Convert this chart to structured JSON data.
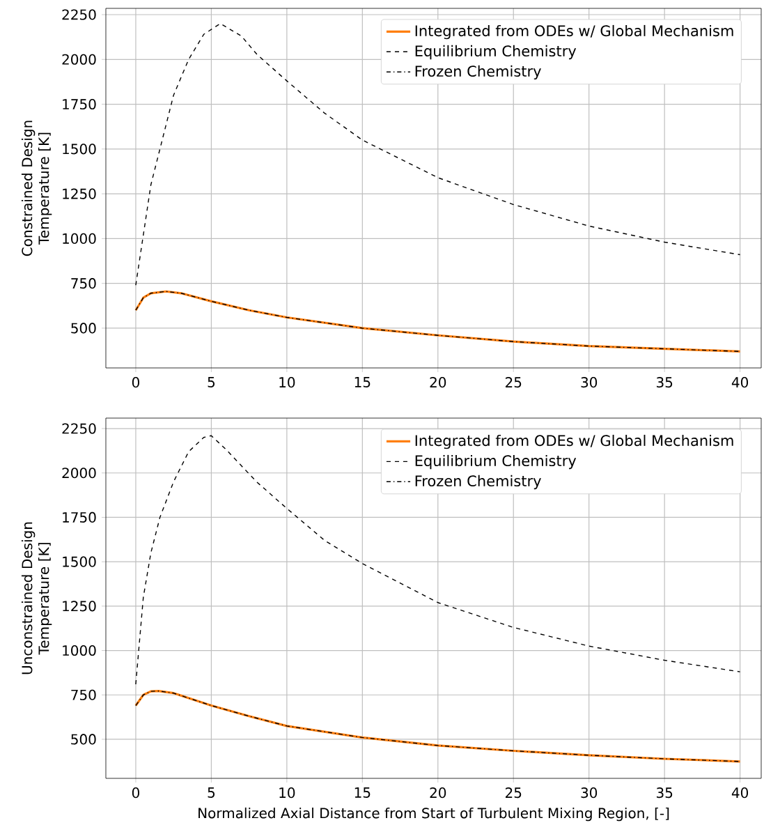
{
  "chart_data": [
    {
      "type": "line",
      "ylabel": "Constrained Design Temperature [K]",
      "xlim": [
        -1.98,
        41.4
      ],
      "ylim": [
        278,
        2285
      ],
      "xticks": [
        0,
        5,
        10,
        15,
        20,
        25,
        30,
        35,
        40
      ],
      "yticks": [
        500,
        750,
        1000,
        1250,
        1500,
        1750,
        2000,
        2250
      ],
      "grid": true,
      "legend": "top right",
      "marker": "none",
      "series": [
        {
          "name": "Integrated from ODEs w/ Global Mechanism",
          "color": "#ff7f0e",
          "line_style": "solid",
          "x": [
            0,
            0.5,
            1,
            2,
            3,
            5,
            7.5,
            10,
            15,
            20,
            25,
            30,
            35,
            40
          ],
          "values": [
            600,
            670,
            695,
            705,
            695,
            650,
            600,
            560,
            500,
            460,
            425,
            400,
            385,
            370
          ]
        },
        {
          "name": "Equilibrium Chemistry",
          "color": "#000000",
          "line_style": "dashed",
          "x": [
            0,
            1,
            1.6,
            2.5,
            3.5,
            4.5,
            5.6,
            7,
            8,
            10,
            12.5,
            15,
            20,
            25,
            30,
            35,
            40
          ],
          "values": [
            740,
            1300,
            1500,
            1800,
            2000,
            2140,
            2200,
            2130,
            2030,
            1880,
            1700,
            1550,
            1340,
            1190,
            1070,
            980,
            910
          ]
        },
        {
          "name": "Frozen Chemistry",
          "color": "#000000",
          "line_style": "dashdot",
          "x": [
            0,
            0.5,
            1,
            2,
            3,
            5,
            7.5,
            10,
            15,
            20,
            25,
            30,
            35,
            40
          ],
          "values": [
            600,
            670,
            695,
            705,
            695,
            650,
            600,
            560,
            500,
            460,
            425,
            400,
            385,
            370
          ]
        }
      ]
    },
    {
      "type": "line",
      "xlabel": "Normalized Axial Distance from Start of Turbulent Mixing Region, [-]",
      "ylabel": "Unconstrained Design Temperature [K]",
      "xlim": [
        -1.98,
        41.4
      ],
      "ylim": [
        280,
        2309
      ],
      "xticks": [
        0,
        5,
        10,
        15,
        20,
        25,
        30,
        35,
        40
      ],
      "yticks": [
        500,
        750,
        1000,
        1250,
        1500,
        1750,
        2000,
        2250
      ],
      "grid": true,
      "legend": "top right",
      "marker": "none",
      "series": [
        {
          "name": "Integrated from ODEs w/ Global Mechanism",
          "color": "#ff7f0e",
          "line_style": "solid",
          "x": [
            0,
            0.5,
            1,
            1.5,
            2.5,
            5,
            7.5,
            10,
            15,
            20,
            25,
            30,
            35,
            40
          ],
          "values": [
            690,
            750,
            770,
            772,
            760,
            690,
            630,
            575,
            510,
            465,
            435,
            410,
            390,
            375
          ]
        },
        {
          "name": "Equilibrium Chemistry",
          "color": "#000000",
          "line_style": "dashed",
          "x": [
            0,
            0.5,
            1,
            1.6,
            2.5,
            3.5,
            4.5,
            5,
            6,
            8,
            10,
            12.5,
            15,
            20,
            25,
            30,
            35,
            40
          ],
          "values": [
            810,
            1300,
            1550,
            1750,
            1950,
            2120,
            2200,
            2210,
            2130,
            1950,
            1800,
            1620,
            1490,
            1270,
            1130,
            1025,
            945,
            880
          ]
        },
        {
          "name": "Frozen Chemistry",
          "color": "#000000",
          "line_style": "dashdot",
          "x": [
            0,
            0.5,
            1,
            1.5,
            2.5,
            5,
            7.5,
            10,
            15,
            20,
            25,
            30,
            35,
            40
          ],
          "values": [
            690,
            750,
            770,
            772,
            760,
            690,
            630,
            575,
            510,
            465,
            435,
            410,
            390,
            375
          ]
        }
      ]
    }
  ]
}
